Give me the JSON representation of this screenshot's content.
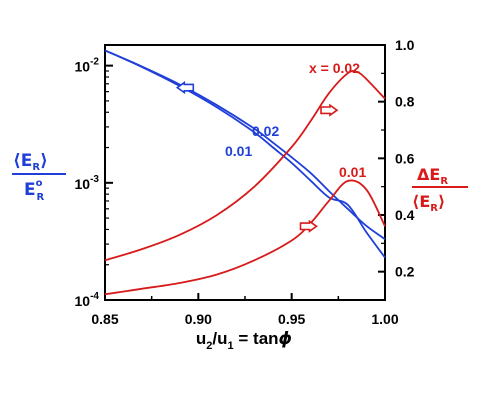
{
  "chart_data": {
    "type": "line",
    "title": "",
    "xlabel": "u2/u1 = tanϕ",
    "xlabel_parts": {
      "u": "u",
      "sub2": "2",
      "slash": "/u",
      "sub1": "1",
      "eq": " = tan",
      "phi": "ϕ"
    },
    "xlim": [
      0.85,
      1.0
    ],
    "x_ticks": [
      0.85,
      0.9,
      0.95,
      1.0
    ],
    "x_tick_labels": [
      "0.85",
      "0.90",
      "0.95",
      "1.00"
    ],
    "left_axis": {
      "scale": "log",
      "ylim": [
        0.0001,
        0.015
      ],
      "tick_labels": [
        {
          "value": 0.01,
          "base": "10",
          "exp": "-2"
        },
        {
          "value": 0.001,
          "base": "10",
          "exp": "-3"
        },
        {
          "value": 0.0001,
          "base": "10",
          "exp": "-4"
        }
      ],
      "label_parts": {
        "num_open": "⟨E",
        "num_sub": "R",
        "num_close": "⟩",
        "den": "E",
        "den_sup": "o",
        "den_sub": "R"
      },
      "color": "#1f3fd8"
    },
    "right_axis": {
      "scale": "linear",
      "ylim": [
        0.1,
        1.0
      ],
      "ticks": [
        0.2,
        0.4,
        0.6,
        0.8,
        1.0
      ],
      "tick_labels": [
        "0.2",
        "0.4",
        "0.6",
        "0.8",
        "1.0"
      ],
      "label_parts": {
        "num": "ΔE",
        "num_sub": "R",
        "den_open": "⟨E",
        "den_sub": "R",
        "den_close": "⟩"
      },
      "color": "#d81a1a"
    },
    "series": [
      {
        "name": "0.02",
        "axis": "left",
        "color": "#1f3fd8",
        "x": [
          0.85,
          0.87,
          0.89,
          0.91,
          0.93,
          0.94,
          0.95,
          0.96,
          0.97,
          0.98,
          0.99,
          1.0
        ],
        "y": [
          0.0135,
          0.0098,
          0.0069,
          0.0046,
          0.0029,
          0.0022,
          0.00165,
          0.00122,
          0.00085,
          0.0006,
          0.00043,
          0.00033
        ]
      },
      {
        "name": "0.01",
        "axis": "left",
        "color": "#1f3fd8",
        "x": [
          0.85,
          0.87,
          0.89,
          0.91,
          0.93,
          0.94,
          0.95,
          0.96,
          0.97,
          0.98,
          0.99,
          1.0
        ],
        "y": [
          0.0135,
          0.0097,
          0.0067,
          0.0044,
          0.0027,
          0.002,
          0.00148,
          0.00105,
          0.00075,
          0.00065,
          0.00038,
          0.00023
        ]
      },
      {
        "name": "x = 0.02",
        "axis": "right",
        "color": "#d81a1a",
        "x": [
          0.85,
          0.87,
          0.89,
          0.91,
          0.93,
          0.95,
          0.96,
          0.97,
          0.98,
          0.985,
          0.99,
          1.0
        ],
        "y": [
          0.24,
          0.28,
          0.33,
          0.4,
          0.5,
          0.64,
          0.73,
          0.83,
          0.9,
          0.905,
          0.88,
          0.81
        ]
      },
      {
        "name": "0.01",
        "axis": "right",
        "color": "#d81a1a",
        "x": [
          0.85,
          0.87,
          0.89,
          0.91,
          0.93,
          0.95,
          0.96,
          0.97,
          0.98,
          0.99,
          1.0
        ],
        "y": [
          0.12,
          0.14,
          0.16,
          0.19,
          0.24,
          0.31,
          0.37,
          0.45,
          0.52,
          0.49,
          0.36
        ]
      }
    ],
    "annotations": [
      {
        "text": "x = 0.02",
        "color": "#d81a1a"
      },
      {
        "text": "0.01",
        "color": "#d81a1a"
      },
      {
        "text": "0.02",
        "color": "#1f3fd8"
      },
      {
        "text": "0.01",
        "color": "#1f3fd8"
      }
    ],
    "arrows": [
      {
        "direction": "left",
        "color": "#1f3fd8",
        "at": {
          "x": 0.893,
          "y_left": 0.0065
        }
      },
      {
        "direction": "right",
        "color": "#d81a1a",
        "at": {
          "x": 0.97,
          "y_right": 0.77
        }
      },
      {
        "direction": "right",
        "color": "#d81a1a",
        "at": {
          "x": 0.959,
          "y_right": 0.36
        }
      }
    ],
    "grid": false,
    "legend": "none"
  }
}
